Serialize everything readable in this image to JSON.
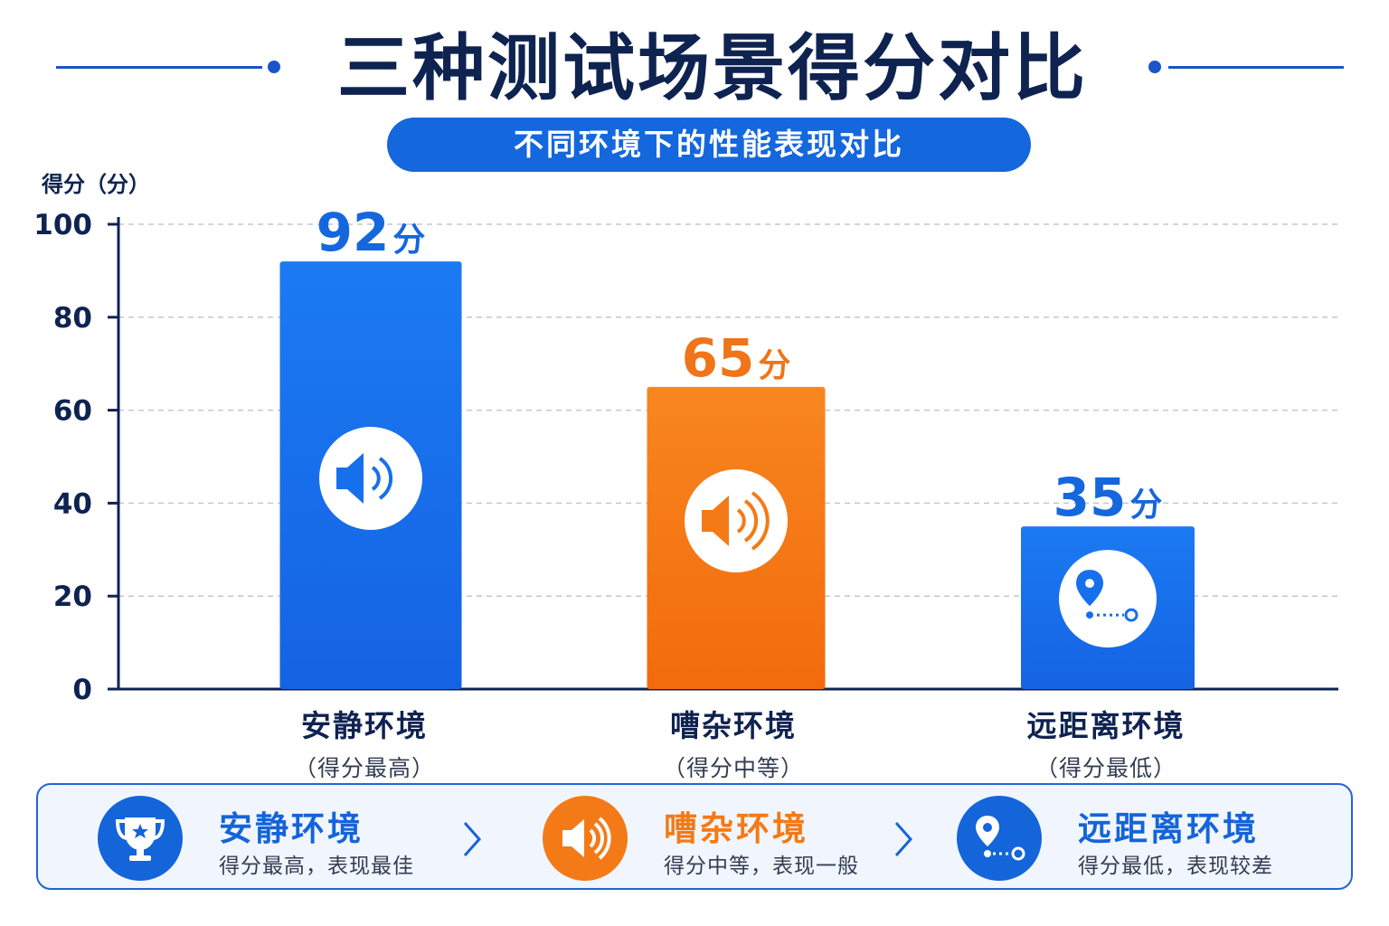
{
  "title": "三种测试场景得分对比",
  "subtitle": "不同环境下的性能表现对比",
  "colors": {
    "blue": "#1670ec",
    "orange": "#f47a17",
    "navy": "#0f2351",
    "grid": "#c3c7cf",
    "accent": "#1a55c8"
  },
  "chart_data": {
    "type": "bar",
    "ylabel": "得分（分）",
    "ylim": [
      0,
      100
    ],
    "yticks": [
      0,
      20,
      40,
      60,
      80,
      100
    ],
    "grid": true,
    "categories": [
      "安静环境",
      "嘈杂环境",
      "远距离环境"
    ],
    "category_notes": [
      "（得分最高）",
      "（得分中等）",
      "（得分最低）"
    ],
    "values": [
      92,
      65,
      35
    ],
    "value_labels": [
      "92",
      "65",
      "35"
    ],
    "unit": "分",
    "bar_colors": [
      "#1670ec",
      "#f47a17",
      "#1670ec"
    ],
    "label_colors": [
      "#1567dd",
      "#f07418",
      "#1567dd"
    ],
    "bar_icons": [
      "speaker-icon",
      "speaker-loud-icon",
      "location-distance-icon"
    ]
  },
  "legend": [
    {
      "name": "安静环境",
      "desc": "得分最高，表现最佳",
      "icon": "trophy-icon",
      "color": "#1464da"
    },
    {
      "name": "嘈杂环境",
      "desc": "得分中等，表现一般",
      "icon": "speaker-icon",
      "color": "#f47a17"
    },
    {
      "name": "远距离环境",
      "desc": "得分最低，表现较差",
      "icon": "location-distance-icon",
      "color": "#1464da"
    }
  ]
}
